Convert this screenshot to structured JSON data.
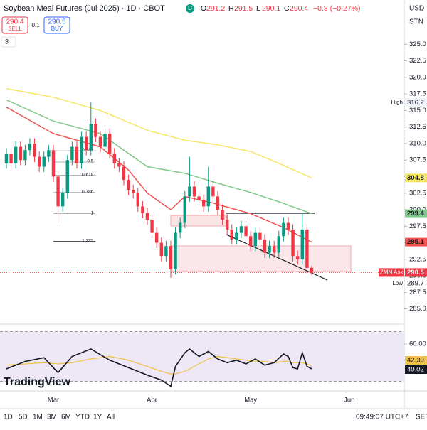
{
  "header": {
    "title": "Soybean Meal Futures (Jul 2025) · 1D · CBOT",
    "status": "D",
    "ohlc_labels": [
      "O",
      "H",
      "L",
      "C"
    ],
    "change": "−0.8 (−0.27%)",
    "sell": "SELL",
    "buy": "BUY",
    "spread": "0.1",
    "currency": "USD",
    "unit": "STN",
    "indicator_count": "3"
  },
  "chart_data": [
    {
      "type": "candlestick",
      "categories": [
        null,
        null,
        null,
        null,
        null,
        null,
        null,
        null,
        null,
        null,
        "Mar",
        null,
        null,
        null,
        null,
        null,
        null,
        null,
        null,
        null,
        null,
        null,
        null,
        null,
        null,
        null,
        null,
        null,
        null,
        null,
        null,
        "Apr",
        null,
        null,
        null,
        null,
        null,
        null,
        null,
        null,
        null,
        null,
        null,
        null,
        null,
        null,
        null,
        null,
        null,
        null,
        null,
        null,
        "May",
        null,
        null,
        null,
        null,
        null,
        null,
        null,
        null,
        null,
        null,
        null,
        null,
        null,
        null,
        null,
        null,
        null,
        null,
        null,
        null,
        "Jun"
      ],
      "open": [
        307,
        308.5,
        307,
        309.5,
        307.5,
        309,
        310,
        308,
        306.5,
        308,
        309,
        305,
        300.5,
        302.5,
        307.5,
        309.5,
        307,
        311,
        309,
        313,
        311,
        309.5,
        311.5,
        308.5,
        307,
        306.5,
        304.5,
        303,
        302.5,
        300.5,
        299.5,
        298.5,
        296.5,
        295,
        293,
        294.5,
        291,
        296.5,
        298,
        302,
        303.5,
        302,
        301.5,
        300.5,
        303.5,
        302,
        300,
        298.5,
        297,
        295.5,
        296.5,
        297.5,
        296,
        294.5,
        296.5,
        295.5,
        293.5,
        294.5,
        293.5,
        296,
        298,
        297,
        293,
        292.5,
        297,
        291.2,
        null,
        null,
        null,
        null,
        null,
        null,
        null,
        null
      ],
      "high": [
        309.3,
        309.3,
        310.3,
        310.3,
        309.8,
        310.8,
        310.8,
        308.8,
        308.8,
        309.8,
        309.8,
        305.8,
        303.3,
        308.3,
        310.3,
        310.3,
        311.8,
        311.8,
        316.2,
        313.8,
        311.8,
        312.3,
        312.3,
        309.3,
        307.8,
        307.3,
        305.3,
        303.8,
        303.3,
        301.3,
        300.3,
        299.3,
        297.3,
        295.8,
        295.3,
        295.3,
        297.3,
        298.8,
        302.8,
        308,
        304.3,
        302.8,
        302.3,
        306.5,
        304.3,
        302.8,
        300.8,
        299.3,
        297.8,
        297.3,
        298.3,
        298.3,
        296.8,
        297.3,
        297.3,
        296.3,
        295.3,
        295.3,
        296.8,
        298.8,
        298.8,
        297.8,
        293.8,
        299.5,
        297.8,
        291.5,
        null,
        null,
        null,
        null,
        null,
        null,
        null,
        null
      ],
      "low": [
        306.2,
        306.2,
        306.2,
        306.7,
        306.7,
        308.2,
        307.2,
        305.7,
        305.7,
        307.2,
        304.2,
        298,
        299.7,
        301.7,
        306.7,
        306.2,
        306.2,
        308.2,
        308.2,
        310.2,
        308.7,
        308.7,
        307.7,
        306.2,
        305.7,
        303.7,
        302.2,
        301.7,
        299.7,
        298.7,
        297.7,
        295.7,
        294.2,
        292.2,
        292.2,
        289.7,
        290.2,
        295.7,
        297.2,
        301.2,
        301.2,
        300.7,
        299.7,
        299.7,
        301.2,
        299.2,
        297.7,
        296.2,
        294.7,
        294.7,
        295.7,
        295.2,
        293.7,
        293.7,
        294.7,
        292.7,
        292.7,
        292.7,
        292.7,
        295.2,
        296.2,
        292.2,
        291.7,
        291.7,
        290.4,
        290.1,
        null,
        null,
        null,
        null,
        null,
        null,
        null,
        null
      ],
      "close": [
        308.5,
        307,
        309.5,
        307.5,
        309,
        310,
        308,
        306.5,
        308,
        309,
        305,
        300.5,
        302.5,
        307.5,
        309.5,
        307,
        311,
        309,
        313,
        311,
        309.5,
        311.5,
        308.5,
        307,
        306.5,
        304.5,
        303,
        302.5,
        300.5,
        299.5,
        298.5,
        296.5,
        295,
        293,
        294.5,
        291,
        296.5,
        298,
        302,
        303.5,
        302,
        301.5,
        300.5,
        303.5,
        302,
        300,
        298.5,
        297,
        295.5,
        296.5,
        297.5,
        296,
        294.5,
        296.5,
        295.5,
        293.5,
        294.5,
        293.5,
        296,
        298,
        297,
        293,
        292.5,
        297,
        291.2,
        290.4,
        null,
        null,
        null,
        null,
        null,
        null,
        null,
        null
      ],
      "up_color": "#089981",
      "down_color": "#f23645",
      "xlim": [
        -1.36,
        84.7
      ],
      "ylim": [
        282.7,
        331.7
      ],
      "yticks": [
        {
          "value": 285,
          "label": "285.0"
        },
        {
          "value": 287.5,
          "label": "287.5"
        },
        {
          "value": 290,
          "label": "290.0"
        },
        {
          "value": 292.5,
          "label": "292.5"
        },
        {
          "value": 295,
          "label": "295.0"
        },
        {
          "value": 297.5,
          "label": "297.5"
        },
        {
          "value": 300,
          "label": "300.0"
        },
        {
          "value": 302.5,
          "label": "302.5"
        },
        {
          "value": 305,
          "label": "305.0"
        },
        {
          "value": 307.5,
          "label": "307.5"
        },
        {
          "value": 310,
          "label": "310.0"
        },
        {
          "value": 312.5,
          "label": "312.5"
        },
        {
          "value": 315,
          "label": "315.0"
        },
        {
          "value": 317.5,
          "label": "317.5"
        },
        {
          "value": 320,
          "label": "320.0"
        },
        {
          "value": 322.5,
          "label": "322.5"
        },
        {
          "value": 325,
          "label": "325.0"
        }
      ],
      "overlays": [
        {
          "color": "#f5e663",
          "x": [
            0,
            10,
            20,
            30,
            38,
            45,
            52,
            58,
            65
          ],
          "values": [
            318.3,
            317,
            315,
            312,
            310.5,
            309.8,
            308.8,
            307,
            304.8
          ]
        },
        {
          "color": "#7fc98a",
          "x": [
            0,
            10,
            20,
            30,
            38,
            45,
            52,
            58,
            65
          ],
          "values": [
            316.6,
            313.4,
            311.5,
            306.5,
            305.5,
            304,
            302.6,
            301.2,
            299.4
          ]
        },
        {
          "color": "#ef5350",
          "x": [
            0,
            10,
            20,
            26,
            30,
            35,
            38,
            44,
            52,
            59,
            65
          ],
          "values": [
            315.5,
            311.5,
            309.5,
            306,
            302.5,
            300,
            302,
            301,
            299.4,
            297.3,
            295.1
          ]
        }
      ],
      "fibonacci": [
        {
          "value": 308.9,
          "label": "0.382"
        },
        {
          "value": 307.2,
          "label": "0.5"
        },
        {
          "value": 305.2,
          "label": "0.618"
        },
        {
          "value": 302.6,
          "label": "0.786"
        },
        {
          "value": 299.4,
          "label": "1"
        },
        {
          "value": 295.2,
          "label": "1.272"
        }
      ],
      "high_label": "High",
      "low_label": "Low",
      "ask": 290.5,
      "ask_label": "ZMN Ask"
    },
    {
      "type": "line",
      "xlim": [
        -1.36,
        84.7
      ],
      "ylim": [
        25,
        75
      ],
      "yticks": [
        {
          "value": 60,
          "label": "60.00"
        }
      ],
      "band": [
        30,
        70
      ],
      "band_color": "#ede7f6",
      "x": [
        0,
        4,
        8,
        11,
        14,
        18,
        22,
        26,
        30,
        33,
        35,
        36,
        38,
        39,
        41,
        43,
        45,
        47,
        49,
        51,
        53,
        55,
        57,
        59,
        60,
        61,
        62,
        63,
        64,
        65
      ],
      "series": [
        {
          "color": "#131722",
          "values": [
            40,
            46,
            49,
            37,
            50,
            56,
            47,
            41,
            35,
            31,
            26,
            42,
            53,
            56,
            50,
            54,
            48,
            45,
            47,
            44,
            48,
            43,
            45,
            52,
            50,
            41,
            40,
            53,
            42,
            40.02
          ]
        },
        {
          "color": "#f0c24a",
          "values": [
            43,
            44,
            45,
            44,
            45,
            48,
            50,
            47,
            42,
            38,
            36,
            36,
            38,
            40,
            44,
            48,
            50,
            49,
            48,
            47,
            46,
            46,
            45,
            46,
            46,
            45,
            45,
            45,
            44,
            42.3
          ],
          "value_labels": [
            null,
            null,
            null,
            null,
            null,
            null,
            null,
            null,
            null,
            null,
            null,
            null,
            null,
            null,
            null,
            null,
            null,
            null,
            null,
            null,
            null,
            null,
            null,
            null,
            null,
            null,
            null,
            null,
            null,
            "42.30"
          ]
        }
      ]
    }
  ],
  "logo": "TradingView",
  "toolbar": {
    "ranges": [
      "1D",
      "5D",
      "1M",
      "3M",
      "6M",
      "YTD",
      "1Y",
      "All"
    ],
    "time": "09:49:07 UTC+7",
    "session": "SET"
  }
}
